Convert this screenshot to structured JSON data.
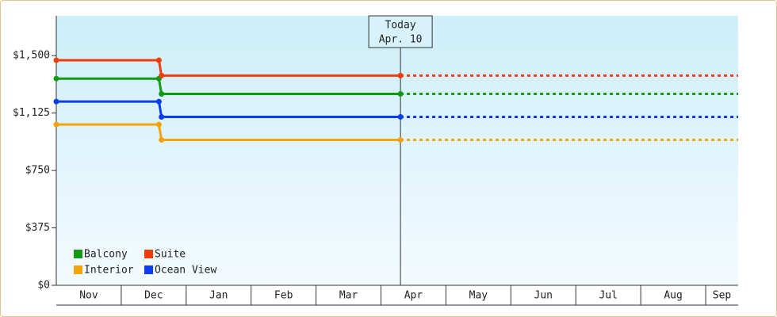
{
  "chart_data": {
    "type": "step-line",
    "x": [
      0,
      1.58,
      1.62,
      5.3
    ],
    "xlim": [
      0,
      10.5
    ],
    "categories": [
      "Nov",
      "Dec",
      "Jan",
      "Feb",
      "Mar",
      "Apr",
      "May",
      "Jun",
      "Jul",
      "Aug",
      "Sep"
    ],
    "ylim": [
      0,
      1760
    ],
    "yticks": [
      {
        "value": 0,
        "label": "$0"
      },
      {
        "value": 375,
        "label": "$375"
      },
      {
        "value": 750,
        "label": "$750"
      },
      {
        "value": 1125,
        "label": "$1,125"
      },
      {
        "value": 1500,
        "label": "$1,500"
      }
    ],
    "today": {
      "x": 5.3,
      "title": "Today",
      "date": "Apr. 10"
    },
    "series": [
      {
        "name": "Balcony",
        "color": "#129a12",
        "values": [
          1350,
          1350,
          1250,
          1250
        ]
      },
      {
        "name": "Suite",
        "color": "#f03c0a",
        "values": [
          1470,
          1470,
          1370,
          1370
        ]
      },
      {
        "name": "Interior",
        "color": "#f5a30a",
        "values": [
          1050,
          1050,
          950,
          950
        ]
      },
      {
        "name": "Ocean View",
        "color": "#0a3cf0",
        "values": [
          1200,
          1200,
          1100,
          1100
        ]
      }
    ]
  }
}
